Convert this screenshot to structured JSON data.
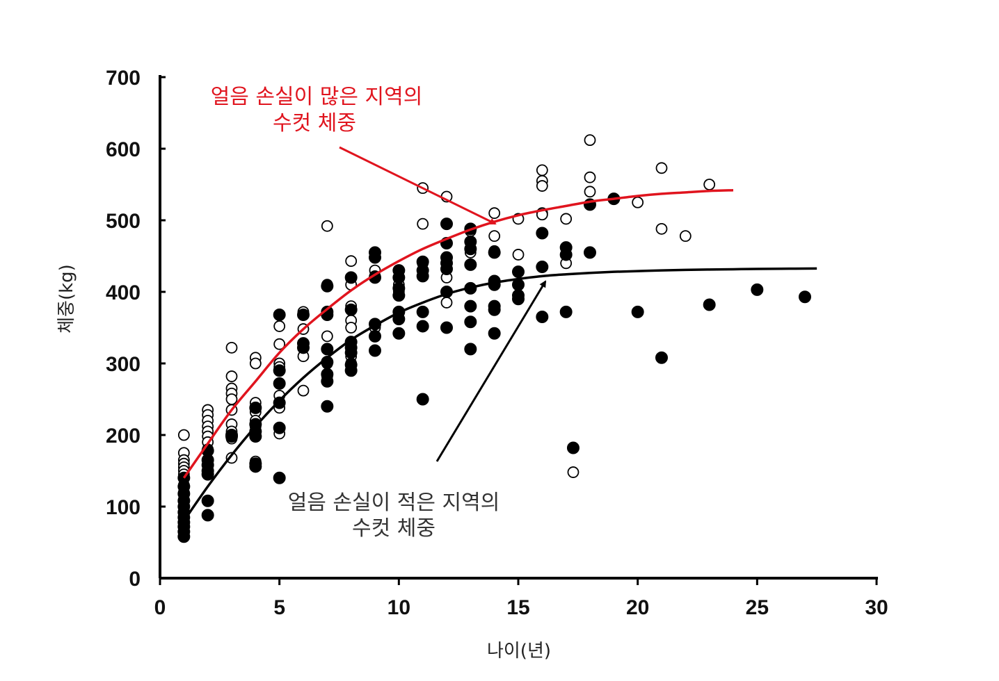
{
  "chart_data": {
    "type": "scatter",
    "xlabel": "나이(년)",
    "ylabel": "체중(kg)",
    "xlim": [
      0,
      30
    ],
    "ylim": [
      0,
      700
    ],
    "xticks": [
      "0",
      "5",
      "10",
      "15",
      "20",
      "25",
      "30"
    ],
    "yticks": [
      "0",
      "100",
      "200",
      "300",
      "400",
      "500",
      "600",
      "700"
    ],
    "grid": false,
    "colors": {
      "high_loss_curve": "#e0141e",
      "low_loss_curve": "#000000",
      "axis": "#000000"
    },
    "annotations": [
      {
        "lines": [
          "얼음 손실이 많은 지역의",
          "수컷 체중"
        ],
        "color": "#e0141e",
        "points_to_x": 14,
        "points_to_y": 485
      },
      {
        "lines": [
          "얼음 손실이 적은 지역의",
          "수컷 체중"
        ],
        "color": "#333333",
        "points_to_x": 16.5,
        "points_to_y": 420
      }
    ],
    "series": [
      {
        "marker": "open-circle",
        "points": [
          [
            1,
            200
          ],
          [
            1,
            175
          ],
          [
            1,
            165
          ],
          [
            1,
            160
          ],
          [
            1,
            155
          ],
          [
            1,
            150
          ],
          [
            1,
            145
          ],
          [
            1,
            140
          ],
          [
            1,
            130
          ],
          [
            1,
            120
          ],
          [
            1,
            110
          ],
          [
            2,
            235
          ],
          [
            2,
            228
          ],
          [
            2,
            220
          ],
          [
            2,
            212
          ],
          [
            2,
            205
          ],
          [
            2,
            198
          ],
          [
            2,
            190
          ],
          [
            2,
            180
          ],
          [
            3,
            322
          ],
          [
            3,
            282
          ],
          [
            3,
            265
          ],
          [
            3,
            258
          ],
          [
            3,
            250
          ],
          [
            3,
            235
          ],
          [
            3,
            215
          ],
          [
            3,
            205
          ],
          [
            3,
            195
          ],
          [
            3,
            168
          ],
          [
            4,
            308
          ],
          [
            4,
            300
          ],
          [
            4,
            245
          ],
          [
            4,
            232
          ],
          [
            4,
            220
          ],
          [
            4,
            212
          ],
          [
            4,
            200
          ],
          [
            4,
            163
          ],
          [
            5,
            352
          ],
          [
            5,
            327
          ],
          [
            5,
            300
          ],
          [
            5,
            295
          ],
          [
            5,
            255
          ],
          [
            5,
            238
          ],
          [
            5,
            210
          ],
          [
            5,
            202
          ],
          [
            6,
            372
          ],
          [
            6,
            348
          ],
          [
            6,
            322
          ],
          [
            6,
            310
          ],
          [
            6,
            262
          ],
          [
            7,
            492
          ],
          [
            7,
            410
          ],
          [
            7,
            338
          ],
          [
            7,
            300
          ],
          [
            7,
            282
          ],
          [
            8,
            443
          ],
          [
            8,
            410
          ],
          [
            8,
            380
          ],
          [
            8,
            360
          ],
          [
            8,
            350
          ],
          [
            8,
            310
          ],
          [
            8,
            300
          ],
          [
            9,
            430
          ],
          [
            9,
            422
          ],
          [
            9,
            350
          ],
          [
            10,
            410
          ],
          [
            10,
            400
          ],
          [
            10,
            395
          ],
          [
            11,
            545
          ],
          [
            11,
            495
          ],
          [
            11,
            440
          ],
          [
            12,
            533
          ],
          [
            12,
            442
          ],
          [
            12,
            420
          ],
          [
            12,
            385
          ],
          [
            13,
            485
          ],
          [
            13,
            455
          ],
          [
            14,
            510
          ],
          [
            14,
            478
          ],
          [
            14,
            457
          ],
          [
            15,
            502
          ],
          [
            15,
            452
          ],
          [
            16,
            570
          ],
          [
            16,
            555
          ],
          [
            16,
            548
          ],
          [
            16,
            510
          ],
          [
            16,
            508
          ],
          [
            17,
            502
          ],
          [
            17,
            440
          ],
          [
            17.3,
            148
          ],
          [
            18,
            612
          ],
          [
            18,
            560
          ],
          [
            18,
            540
          ],
          [
            18,
            522
          ],
          [
            20,
            525
          ],
          [
            21,
            573
          ],
          [
            21,
            488
          ],
          [
            22,
            478
          ],
          [
            23,
            550
          ]
        ]
      },
      {
        "marker": "filled-circle",
        "points": [
          [
            1,
            140
          ],
          [
            1,
            128
          ],
          [
            1,
            118
          ],
          [
            1,
            108
          ],
          [
            1,
            100
          ],
          [
            1,
            92
          ],
          [
            1,
            85
          ],
          [
            1,
            78
          ],
          [
            1,
            72
          ],
          [
            1,
            65
          ],
          [
            1,
            58
          ],
          [
            2,
            178
          ],
          [
            2,
            165
          ],
          [
            2,
            158
          ],
          [
            2,
            150
          ],
          [
            2,
            145
          ],
          [
            2,
            108
          ],
          [
            2,
            88
          ],
          [
            3,
            200
          ],
          [
            3,
            198
          ],
          [
            4,
            238
          ],
          [
            4,
            215
          ],
          [
            4,
            205
          ],
          [
            4,
            198
          ],
          [
            4,
            160
          ],
          [
            4,
            156
          ],
          [
            5,
            368
          ],
          [
            5,
            290
          ],
          [
            5,
            272
          ],
          [
            5,
            245
          ],
          [
            5,
            210
          ],
          [
            5,
            140
          ],
          [
            6,
            368
          ],
          [
            6,
            328
          ],
          [
            6,
            322
          ],
          [
            7,
            408
          ],
          [
            7,
            372
          ],
          [
            7,
            368
          ],
          [
            7,
            320
          ],
          [
            7,
            302
          ],
          [
            7,
            285
          ],
          [
            7,
            275
          ],
          [
            7,
            240
          ],
          [
            8,
            420
          ],
          [
            8,
            375
          ],
          [
            8,
            330
          ],
          [
            8,
            322
          ],
          [
            8,
            315
          ],
          [
            8,
            298
          ],
          [
            8,
            290
          ],
          [
            9,
            455
          ],
          [
            9,
            448
          ],
          [
            9,
            420
          ],
          [
            9,
            355
          ],
          [
            9,
            338
          ],
          [
            9,
            318
          ],
          [
            10,
            430
          ],
          [
            10,
            420
          ],
          [
            10,
            405
          ],
          [
            10,
            395
          ],
          [
            10,
            372
          ],
          [
            10,
            362
          ],
          [
            10,
            342
          ],
          [
            11,
            442
          ],
          [
            11,
            430
          ],
          [
            11,
            422
          ],
          [
            11,
            372
          ],
          [
            11,
            352
          ],
          [
            11,
            250
          ],
          [
            12,
            495
          ],
          [
            12,
            468
          ],
          [
            12,
            448
          ],
          [
            12,
            440
          ],
          [
            12,
            432
          ],
          [
            12,
            400
          ],
          [
            12,
            350
          ],
          [
            13,
            488
          ],
          [
            13,
            470
          ],
          [
            13,
            460
          ],
          [
            13,
            438
          ],
          [
            13,
            405
          ],
          [
            13,
            380
          ],
          [
            13,
            358
          ],
          [
            13,
            320
          ],
          [
            14,
            455
          ],
          [
            14,
            415
          ],
          [
            14,
            410
          ],
          [
            14,
            380
          ],
          [
            14,
            375
          ],
          [
            14,
            342
          ],
          [
            15,
            428
          ],
          [
            15,
            410
          ],
          [
            15,
            395
          ],
          [
            15,
            390
          ],
          [
            16,
            482
          ],
          [
            16,
            435
          ],
          [
            16,
            365
          ],
          [
            17,
            462
          ],
          [
            17,
            452
          ],
          [
            17,
            372
          ],
          [
            17.3,
            182
          ],
          [
            18,
            522
          ],
          [
            18,
            455
          ],
          [
            19,
            530
          ],
          [
            20,
            372
          ],
          [
            21,
            308
          ],
          [
            23,
            382
          ],
          [
            25,
            403
          ],
          [
            27,
            393
          ]
        ]
      }
    ],
    "curves": [
      {
        "color": "#e0141e",
        "points": [
          [
            1,
            140
          ],
          [
            2,
            188
          ],
          [
            3,
            235
          ],
          [
            4,
            275
          ],
          [
            5,
            315
          ],
          [
            6,
            348
          ],
          [
            7,
            376
          ],
          [
            8,
            402
          ],
          [
            9,
            424
          ],
          [
            10,
            443
          ],
          [
            11,
            460
          ],
          [
            12,
            474
          ],
          [
            13,
            487
          ],
          [
            14,
            498
          ],
          [
            15,
            507
          ],
          [
            16,
            514
          ],
          [
            17,
            520
          ],
          [
            18,
            526
          ],
          [
            19,
            530
          ],
          [
            20,
            534
          ],
          [
            21,
            537
          ],
          [
            22,
            539
          ],
          [
            23,
            541
          ],
          [
            24,
            542
          ]
        ]
      },
      {
        "color": "#000000",
        "points": [
          [
            1,
            80
          ],
          [
            2,
            128
          ],
          [
            3,
            172
          ],
          [
            4,
            212
          ],
          [
            5,
            248
          ],
          [
            6,
            280
          ],
          [
            7,
            308
          ],
          [
            8,
            333
          ],
          [
            9,
            353
          ],
          [
            10,
            371
          ],
          [
            11,
            385
          ],
          [
            12,
            397
          ],
          [
            13,
            406
          ],
          [
            14,
            413
          ],
          [
            15,
            418
          ],
          [
            16,
            422
          ],
          [
            17,
            424.5
          ],
          [
            18,
            426.5
          ],
          [
            19,
            428
          ],
          [
            20,
            429
          ],
          [
            21,
            430
          ],
          [
            22,
            430.7
          ],
          [
            23,
            431.2
          ],
          [
            24,
            431.6
          ],
          [
            25,
            432
          ],
          [
            26,
            432.3
          ],
          [
            27,
            432.5
          ],
          [
            27.5,
            432.6
          ]
        ]
      }
    ]
  }
}
